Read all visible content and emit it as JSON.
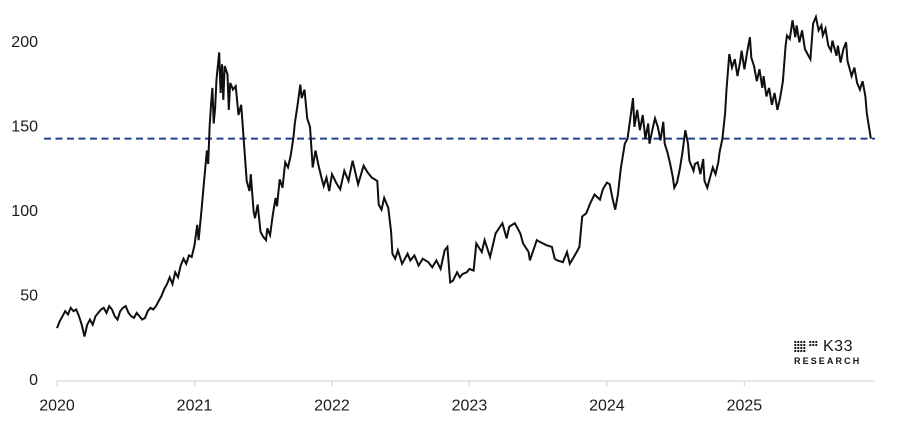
{
  "logo": {
    "brand": "K33",
    "sub": "RESEARCH",
    "dot_pattern": [
      "1111.111",
      "1111.111",
      "1111....",
      "1111...."
    ]
  },
  "colors": {
    "background": "#ffffff",
    "line": "#0e0e13",
    "axis": "#d9d9d9",
    "tick_label": "#1c1c1e",
    "reference": "#24418e"
  },
  "chart_data": {
    "type": "line",
    "title": "",
    "xlabel": "",
    "ylabel": "",
    "grid": false,
    "legend": "none",
    "xlim": [
      2020,
      2025.95
    ],
    "ylim": [
      0,
      225
    ],
    "x_ticks": [
      2020,
      2021,
      2022,
      2023,
      2024,
      2025
    ],
    "x_tick_labels": [
      "2020",
      "2021",
      "2022",
      "2023",
      "2024",
      "2025"
    ],
    "y_ticks": [
      0,
      50,
      100,
      150,
      200
    ],
    "y_tick_labels": [
      "0",
      "50",
      "100",
      "150",
      "200"
    ],
    "reference_line": {
      "value": 143,
      "style": "dashed",
      "color": "#24418e"
    },
    "series": [
      {
        "name": "value",
        "color": "#0e0e13",
        "points": [
          [
            2020.0,
            31
          ],
          [
            2020.02,
            35
          ],
          [
            2020.04,
            38
          ],
          [
            2020.06,
            41
          ],
          [
            2020.08,
            39
          ],
          [
            2020.1,
            43
          ],
          [
            2020.12,
            41
          ],
          [
            2020.14,
            42
          ],
          [
            2020.16,
            38
          ],
          [
            2020.18,
            33
          ],
          [
            2020.2,
            26
          ],
          [
            2020.22,
            33
          ],
          [
            2020.24,
            36
          ],
          [
            2020.26,
            33
          ],
          [
            2020.28,
            38
          ],
          [
            2020.3,
            40
          ],
          [
            2020.32,
            42
          ],
          [
            2020.34,
            43
          ],
          [
            2020.36,
            40
          ],
          [
            2020.38,
            44
          ],
          [
            2020.4,
            42
          ],
          [
            2020.42,
            38
          ],
          [
            2020.44,
            36
          ],
          [
            2020.46,
            41
          ],
          [
            2020.48,
            43
          ],
          [
            2020.5,
            44
          ],
          [
            2020.52,
            40
          ],
          [
            2020.54,
            38
          ],
          [
            2020.56,
            37
          ],
          [
            2020.58,
            40
          ],
          [
            2020.6,
            38
          ],
          [
            2020.62,
            36
          ],
          [
            2020.64,
            37
          ],
          [
            2020.66,
            41
          ],
          [
            2020.68,
            43
          ],
          [
            2020.7,
            42
          ],
          [
            2020.72,
            44
          ],
          [
            2020.74,
            47
          ],
          [
            2020.76,
            50
          ],
          [
            2020.78,
            54
          ],
          [
            2020.8,
            57
          ],
          [
            2020.82,
            61
          ],
          [
            2020.84,
            57
          ],
          [
            2020.86,
            64
          ],
          [
            2020.88,
            61
          ],
          [
            2020.9,
            68
          ],
          [
            2020.92,
            72
          ],
          [
            2020.94,
            69
          ],
          [
            2020.96,
            74
          ],
          [
            2020.98,
            73
          ],
          [
            2021.0,
            80
          ],
          [
            2021.02,
            92
          ],
          [
            2021.03,
            83
          ],
          [
            2021.05,
            100
          ],
          [
            2021.07,
            118
          ],
          [
            2021.09,
            136
          ],
          [
            2021.1,
            128
          ],
          [
            2021.11,
            150
          ],
          [
            2021.12,
            163
          ],
          [
            2021.13,
            173
          ],
          [
            2021.14,
            152
          ],
          [
            2021.15,
            161
          ],
          [
            2021.16,
            178
          ],
          [
            2021.18,
            194
          ],
          [
            2021.19,
            170
          ],
          [
            2021.2,
            187
          ],
          [
            2021.21,
            166
          ],
          [
            2021.22,
            186
          ],
          [
            2021.24,
            181
          ],
          [
            2021.25,
            160
          ],
          [
            2021.26,
            176
          ],
          [
            2021.28,
            172
          ],
          [
            2021.3,
            174
          ],
          [
            2021.32,
            157
          ],
          [
            2021.34,
            163
          ],
          [
            2021.36,
            140
          ],
          [
            2021.38,
            118
          ],
          [
            2021.4,
            112
          ],
          [
            2021.41,
            122
          ],
          [
            2021.43,
            100
          ],
          [
            2021.44,
            96
          ],
          [
            2021.46,
            104
          ],
          [
            2021.48,
            88
          ],
          [
            2021.5,
            85
          ],
          [
            2021.52,
            83
          ],
          [
            2021.53,
            90
          ],
          [
            2021.55,
            86
          ],
          [
            2021.57,
            98
          ],
          [
            2021.59,
            108
          ],
          [
            2021.6,
            103
          ],
          [
            2021.62,
            119
          ],
          [
            2021.64,
            114
          ],
          [
            2021.66,
            129
          ],
          [
            2021.68,
            126
          ],
          [
            2021.7,
            133
          ],
          [
            2021.72,
            144
          ],
          [
            2021.73,
            152
          ],
          [
            2021.75,
            163
          ],
          [
            2021.77,
            175
          ],
          [
            2021.78,
            167
          ],
          [
            2021.8,
            172
          ],
          [
            2021.82,
            155
          ],
          [
            2021.84,
            150
          ],
          [
            2021.86,
            126
          ],
          [
            2021.88,
            136
          ],
          [
            2021.9,
            128
          ],
          [
            2021.92,
            121
          ],
          [
            2021.94,
            115
          ],
          [
            2021.96,
            120
          ],
          [
            2021.98,
            112
          ],
          [
            2022.0,
            122
          ],
          [
            2022.03,
            117
          ],
          [
            2022.06,
            113
          ],
          [
            2022.09,
            124
          ],
          [
            2022.12,
            118
          ],
          [
            2022.15,
            130
          ],
          [
            2022.19,
            116
          ],
          [
            2022.23,
            127
          ],
          [
            2022.26,
            123
          ],
          [
            2022.29,
            120
          ],
          [
            2022.33,
            118
          ],
          [
            2022.34,
            104
          ],
          [
            2022.36,
            101
          ],
          [
            2022.38,
            108
          ],
          [
            2022.41,
            102
          ],
          [
            2022.43,
            88
          ],
          [
            2022.44,
            75
          ],
          [
            2022.46,
            72
          ],
          [
            2022.48,
            77
          ],
          [
            2022.51,
            69
          ],
          [
            2022.55,
            75
          ],
          [
            2022.57,
            71
          ],
          [
            2022.6,
            74
          ],
          [
            2022.63,
            68
          ],
          [
            2022.66,
            72
          ],
          [
            2022.7,
            70
          ],
          [
            2022.73,
            67
          ],
          [
            2022.76,
            71
          ],
          [
            2022.79,
            66
          ],
          [
            2022.82,
            77
          ],
          [
            2022.84,
            79
          ],
          [
            2022.86,
            58
          ],
          [
            2022.88,
            59
          ],
          [
            2022.91,
            64
          ],
          [
            2022.93,
            61
          ],
          [
            2022.95,
            63
          ],
          [
            2022.98,
            64
          ],
          [
            2023.0,
            66
          ],
          [
            2023.03,
            65
          ],
          [
            2023.05,
            81
          ],
          [
            2023.09,
            76
          ],
          [
            2023.11,
            83
          ],
          [
            2023.15,
            73
          ],
          [
            2023.19,
            87
          ],
          [
            2023.24,
            93
          ],
          [
            2023.27,
            84
          ],
          [
            2023.29,
            91
          ],
          [
            2023.33,
            93
          ],
          [
            2023.37,
            87
          ],
          [
            2023.39,
            81
          ],
          [
            2023.43,
            76
          ],
          [
            2023.44,
            71
          ],
          [
            2023.49,
            83
          ],
          [
            2023.51,
            82
          ],
          [
            2023.56,
            80
          ],
          [
            2023.6,
            79
          ],
          [
            2023.62,
            72
          ],
          [
            2023.64,
            71
          ],
          [
            2023.68,
            70
          ],
          [
            2023.71,
            76
          ],
          [
            2023.73,
            69
          ],
          [
            2023.78,
            76
          ],
          [
            2023.8,
            79
          ],
          [
            2023.82,
            97
          ],
          [
            2023.85,
            99
          ],
          [
            2023.88,
            105
          ],
          [
            2023.91,
            110
          ],
          [
            2023.95,
            107
          ],
          [
            2023.97,
            113
          ],
          [
            2024.0,
            117
          ],
          [
            2024.02,
            116
          ],
          [
            2024.04,
            108
          ],
          [
            2024.06,
            101
          ],
          [
            2024.08,
            110
          ],
          [
            2024.1,
            125
          ],
          [
            2024.13,
            140
          ],
          [
            2024.15,
            143
          ],
          [
            2024.17,
            155
          ],
          [
            2024.19,
            167
          ],
          [
            2024.2,
            150
          ],
          [
            2024.22,
            160
          ],
          [
            2024.24,
            148
          ],
          [
            2024.26,
            157
          ],
          [
            2024.28,
            143
          ],
          [
            2024.3,
            152
          ],
          [
            2024.31,
            140
          ],
          [
            2024.33,
            148
          ],
          [
            2024.35,
            155
          ],
          [
            2024.37,
            150
          ],
          [
            2024.39,
            142
          ],
          [
            2024.41,
            153
          ],
          [
            2024.42,
            140
          ],
          [
            2024.44,
            135
          ],
          [
            2024.46,
            128
          ],
          [
            2024.48,
            120
          ],
          [
            2024.49,
            114
          ],
          [
            2024.51,
            117
          ],
          [
            2024.53,
            125
          ],
          [
            2024.55,
            135
          ],
          [
            2024.57,
            148
          ],
          [
            2024.59,
            140
          ],
          [
            2024.6,
            130
          ],
          [
            2024.63,
            124
          ],
          [
            2024.64,
            128
          ],
          [
            2024.66,
            129
          ],
          [
            2024.68,
            122
          ],
          [
            2024.7,
            131
          ],
          [
            2024.71,
            118
          ],
          [
            2024.73,
            114
          ],
          [
            2024.75,
            120
          ],
          [
            2024.77,
            126
          ],
          [
            2024.79,
            122
          ],
          [
            2024.81,
            129
          ],
          [
            2024.82,
            135
          ],
          [
            2024.84,
            143
          ],
          [
            2024.86,
            158
          ],
          [
            2024.87,
            172
          ],
          [
            2024.89,
            193
          ],
          [
            2024.91,
            185
          ],
          [
            2024.93,
            190
          ],
          [
            2024.95,
            180
          ],
          [
            2024.97,
            189
          ],
          [
            2024.98,
            195
          ],
          [
            2025.0,
            184
          ],
          [
            2025.02,
            194
          ],
          [
            2025.04,
            203
          ],
          [
            2025.05,
            191
          ],
          [
            2025.07,
            186
          ],
          [
            2025.09,
            177
          ],
          [
            2025.11,
            184
          ],
          [
            2025.13,
            173
          ],
          [
            2025.14,
            180
          ],
          [
            2025.16,
            168
          ],
          [
            2025.18,
            173
          ],
          [
            2025.2,
            163
          ],
          [
            2025.22,
            170
          ],
          [
            2025.24,
            160
          ],
          [
            2025.26,
            167
          ],
          [
            2025.28,
            177
          ],
          [
            2025.3,
            198
          ],
          [
            2025.31,
            204
          ],
          [
            2025.33,
            202
          ],
          [
            2025.35,
            213
          ],
          [
            2025.37,
            203
          ],
          [
            2025.38,
            210
          ],
          [
            2025.4,
            200
          ],
          [
            2025.42,
            207
          ],
          [
            2025.44,
            196
          ],
          [
            2025.46,
            193
          ],
          [
            2025.48,
            190
          ],
          [
            2025.5,
            211
          ],
          [
            2025.52,
            215
          ],
          [
            2025.54,
            207
          ],
          [
            2025.56,
            210
          ],
          [
            2025.57,
            204
          ],
          [
            2025.59,
            208
          ],
          [
            2025.61,
            198
          ],
          [
            2025.63,
            195
          ],
          [
            2025.64,
            201
          ],
          [
            2025.67,
            192
          ],
          [
            2025.68,
            198
          ],
          [
            2025.7,
            188
          ],
          [
            2025.72,
            196
          ],
          [
            2025.74,
            200
          ],
          [
            2025.75,
            189
          ],
          [
            2025.78,
            180
          ],
          [
            2025.8,
            185
          ],
          [
            2025.82,
            176
          ],
          [
            2025.84,
            172
          ],
          [
            2025.86,
            177
          ],
          [
            2025.88,
            168
          ],
          [
            2025.89,
            158
          ],
          [
            2025.91,
            148
          ],
          [
            2025.92,
            143
          ]
        ]
      }
    ]
  }
}
